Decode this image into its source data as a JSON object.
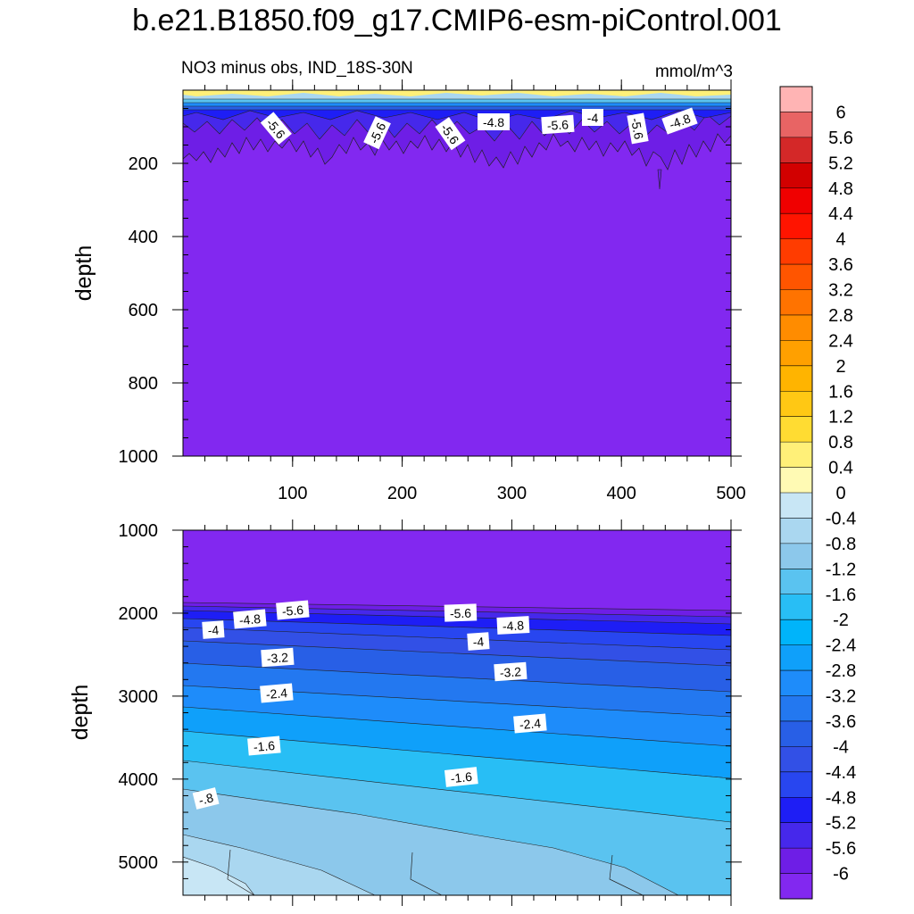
{
  "title": "b.e21.B1850.f09_g17.CMIP6-esm-piControl.001",
  "chart_data": [
    {
      "type": "heatmap",
      "subtitle_left": "NO3 minus obs, IND_18S-30N",
      "subtitle_right": "mmol/m^3",
      "ylabel": "depth",
      "xlabel": "",
      "xlim": [
        0,
        500
      ],
      "ylim": [
        0,
        1000
      ],
      "y_reversed": true,
      "x_ticks": [
        100,
        200,
        300,
        400,
        500
      ],
      "y_ticks": [
        200,
        400,
        600,
        800,
        1000
      ],
      "contour_labels": [
        "-5.6",
        "-5.6",
        "-5.6",
        "-4.8",
        "-5.6",
        "-4",
        "-5.6",
        "-4.8"
      ],
      "bands": [
        {
          "range": [
            0,
            25
          ],
          "value": 0.2
        },
        {
          "range": [
            25,
            50
          ],
          "value": -1.0
        },
        {
          "range": [
            50,
            70
          ],
          "value": -3.4
        },
        {
          "range": [
            70,
            100
          ],
          "value": -5.2
        },
        {
          "range": [
            100,
            170
          ],
          "value": -5.8
        },
        {
          "range": [
            170,
            1000
          ],
          "value": -6.2
        }
      ]
    },
    {
      "type": "heatmap",
      "ylabel": "depth",
      "xlabel": "",
      "xlim": [
        0,
        500
      ],
      "ylim": [
        1000,
        5400
      ],
      "y_reversed": true,
      "y_ticks": [
        1000,
        2000,
        3000,
        4000,
        5000
      ],
      "contour_labels": [
        "-5.6",
        "-4.8",
        "-4",
        "-3.2",
        "-2.4",
        "-1.6",
        "-.8",
        "-5.6",
        "-4.8",
        "-4",
        "-3.2",
        "-2.4",
        "-1.6"
      ]
    }
  ],
  "colorbar": {
    "labels": [
      "6",
      "5.6",
      "5.2",
      "4.8",
      "4.4",
      "4",
      "3.6",
      "3.2",
      "2.8",
      "2.4",
      "2",
      "1.6",
      "1.2",
      "0.8",
      "0.4",
      "0",
      "-0.4",
      "-0.8",
      "-1.2",
      "-1.6",
      "-2",
      "-2.4",
      "-2.8",
      "-3.2",
      "-3.6",
      "-4",
      "-4.4",
      "-4.8",
      "-5.2",
      "-5.6",
      "-6"
    ],
    "colors_top_to_bottom": [
      "#FFB4B4",
      "#E86464",
      "#D42828",
      "#D20000",
      "#F00000",
      "#FF1400",
      "#FF3C00",
      "#FF5500",
      "#FF7300",
      "#FF8C00",
      "#FFA000",
      "#FFB400",
      "#FFC814",
      "#FFDC32",
      "#FFF078",
      "#FFFAB4",
      "#C8E6F5",
      "#AAD7F0",
      "#8CC8EB",
      "#5AC3F0",
      "#28BEF5",
      "#00B4FA",
      "#0FA0FA",
      "#1E8CFA",
      "#2378F0",
      "#285FE6",
      "#3250E6",
      "#2846F0",
      "#1E1EF5",
      "#4628EB",
      "#6E1EE6",
      "#8228F0"
    ]
  }
}
